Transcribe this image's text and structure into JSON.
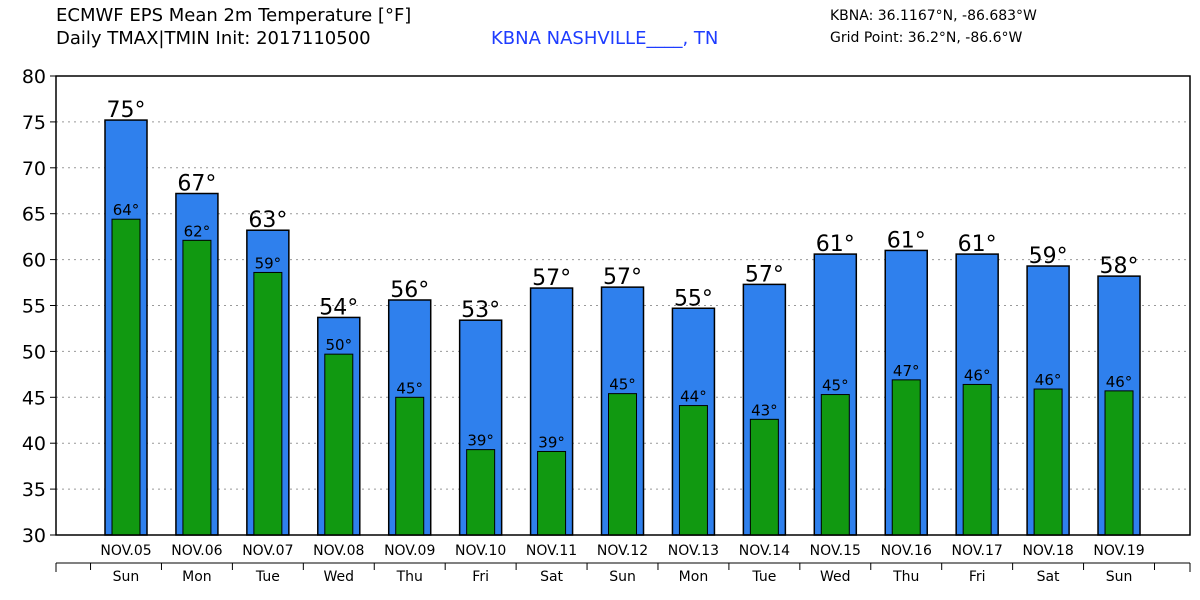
{
  "header": {
    "title_line1": "ECMWF EPS Mean 2m Temperature [°F]",
    "title_line2": "Daily TMAX|TMIN Init: 2017110500",
    "station": "KBNA NASHVILLE____, TN",
    "coord_line1": "KBNA: 36.1167°N, -86.683°W",
    "coord_line2": "Grid Point: 36.2°N, -86.6°W"
  },
  "colors": {
    "tmax": "#2f80ed",
    "tmin": "#119911",
    "grid": "#999999",
    "station": "#1e3cff"
  },
  "chart_data": {
    "type": "bar",
    "categories": [
      "NOV.05",
      "NOV.06",
      "NOV.07",
      "NOV.08",
      "NOV.09",
      "NOV.10",
      "NOV.11",
      "NOV.12",
      "NOV.13",
      "NOV.14",
      "NOV.15",
      "NOV.16",
      "NOV.17",
      "NOV.18",
      "NOV.19"
    ],
    "days": [
      "Sun",
      "Mon",
      "Tue",
      "Wed",
      "Thu",
      "Fri",
      "Sat",
      "Sun",
      "Mon",
      "Tue",
      "Wed",
      "Thu",
      "Fri",
      "Sat",
      "Sun"
    ],
    "series": [
      {
        "key": "tmax",
        "values": [
          75.2,
          67.2,
          63.2,
          53.7,
          55.6,
          53.4,
          56.9,
          57.0,
          54.7,
          57.3,
          60.6,
          61.0,
          60.6,
          59.3,
          58.2
        ],
        "labels": [
          "75°",
          "67°",
          "63°",
          "54°",
          "56°",
          "53°",
          "57°",
          "57°",
          "55°",
          "57°",
          "61°",
          "61°",
          "61°",
          "59°",
          "58°"
        ]
      },
      {
        "key": "tmin",
        "values": [
          64.4,
          62.1,
          58.6,
          49.7,
          45.0,
          39.3,
          39.1,
          45.4,
          44.1,
          42.6,
          45.3,
          46.9,
          46.4,
          45.9,
          45.7
        ],
        "labels": [
          "64°",
          "62°",
          "59°",
          "50°",
          "45°",
          "39°",
          "39°",
          "45°",
          "44°",
          "43°",
          "45°",
          "47°",
          "46°",
          "46°",
          "46°"
        ]
      }
    ],
    "ylim": [
      30,
      80
    ],
    "yticks": [
      "80",
      "75",
      "70",
      "65",
      "60",
      "55",
      "50",
      "45",
      "40",
      "35",
      "30"
    ],
    "grid": true
  }
}
